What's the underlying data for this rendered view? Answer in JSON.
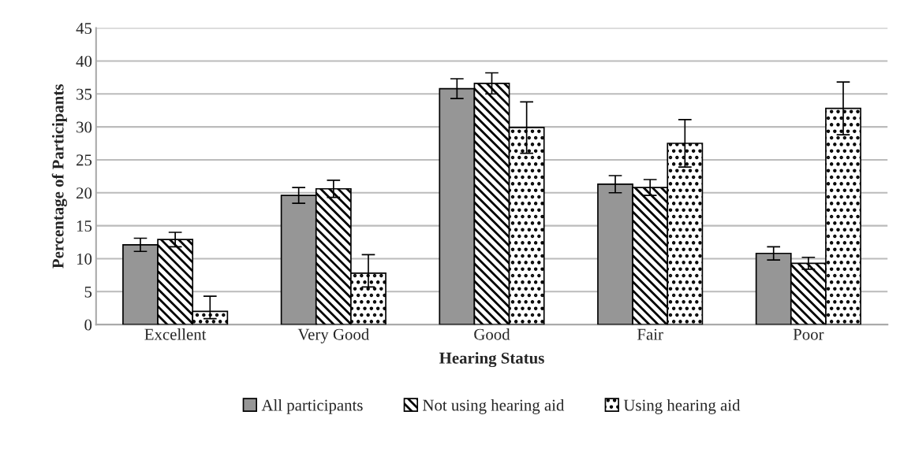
{
  "chart_data": {
    "type": "bar",
    "xlabel": "Hearing Status",
    "ylabel": "Percentage of Participants",
    "categories": [
      "Excellent",
      "Very Good",
      "Good",
      "Fair",
      "Poor"
    ],
    "series": [
      {
        "name": "All participants",
        "color": "#969696",
        "values": [
          12.1,
          19.6,
          35.8,
          21.3,
          10.8
        ],
        "errors": [
          1.0,
          1.2,
          1.5,
          1.3,
          1.0
        ]
      },
      {
        "name": "Not using hearing aid",
        "color": "#000000",
        "values": [
          12.9,
          20.6,
          36.6,
          20.8,
          9.3
        ],
        "errors": [
          1.1,
          1.3,
          1.6,
          1.2,
          0.9
        ]
      },
      {
        "name": "Using hearing aid",
        "color": "#000000",
        "values": [
          2.0,
          7.8,
          29.9,
          27.5,
          32.8
        ],
        "errors": [
          [
            0.9,
            4.3
          ],
          [
            5.7,
            10.6
          ],
          3.9,
          3.6,
          4.0
        ]
      }
    ],
    "ylim": [
      0,
      45
    ],
    "yticks": [
      0,
      5,
      10,
      15,
      20,
      25,
      30,
      35,
      40,
      45
    ],
    "grid": "y",
    "legend": "bottom"
  }
}
